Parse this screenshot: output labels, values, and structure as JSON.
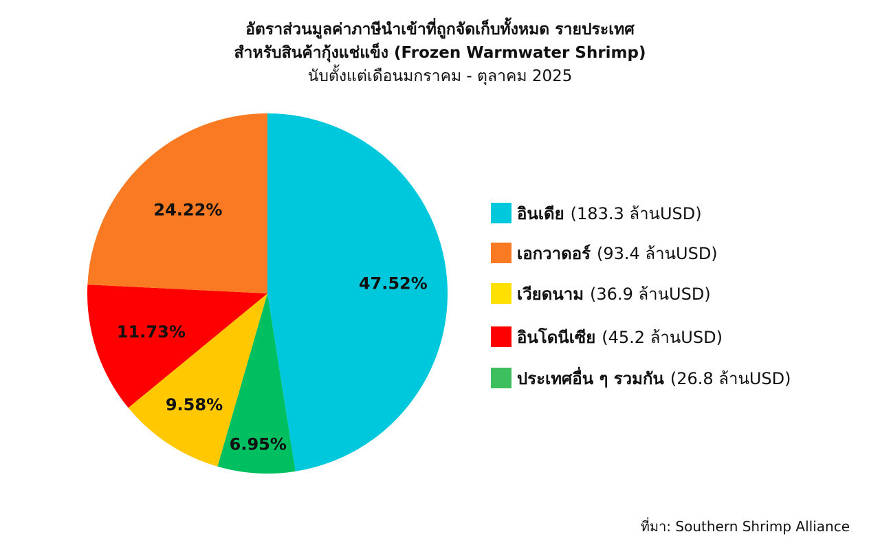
{
  "chart": {
    "title_line1": "อัตราส่วนมูลค่าภาษีนำเข้าที่ถูกจัดเก็บทั้งหมด รายประเทศ",
    "title_line2": "สำหรับสินค้ากุ้งแช่แข็ง (Frozen Warmwater Shrimp)",
    "subtitle": "นับตั้งแต่เดือนมกราคม - ตุลาคม 2025",
    "source": "ที่มา: Southern Shrimp Alliance"
  },
  "chart_data": {
    "type": "pie",
    "slices": [
      {
        "name": "อินเดีย",
        "value": 183.3,
        "value_label": "(183.3 ล้านUSD)",
        "percent": 47.52,
        "percent_label": "47.52%",
        "color": "#00C8DC"
      },
      {
        "name": "ประเทศอื่น ๆ รวมกัน",
        "value": 26.8,
        "value_label": "(26.8 ล้านUSD)",
        "percent": 6.95,
        "percent_label": "6.95%",
        "color": "#00BF60"
      },
      {
        "name": "เวียดนาม",
        "value": 36.9,
        "value_label": "(36.9 ล้านUSD)",
        "percent": 9.58,
        "percent_label": "9.58%",
        "color": "#FFC800"
      },
      {
        "name": "อินโดนีเซีย",
        "value": 45.2,
        "value_label": "(45.2 ล้านUSD)",
        "percent": 11.73,
        "percent_label": "11.73%",
        "color": "#FF0000"
      },
      {
        "name": "เอกวาดอร์",
        "value": 93.4,
        "value_label": "(93.4 ล้านUSD)",
        "percent": 24.22,
        "percent_label": "24.22%",
        "color": "#F97A22"
      }
    ],
    "legend": [
      {
        "name": "อินเดีย",
        "value_label": "(183.3 ล้านUSD)",
        "color": "#00C8DC"
      },
      {
        "name": "เอกวาดอร์",
        "value_label": "(93.4 ล้านUSD)",
        "color": "#F97A22"
      },
      {
        "name": "เวียดนาม",
        "value_label": "(36.9 ล้านUSD)",
        "color": "#FFE000"
      },
      {
        "name": "อินโดนีเซีย",
        "value_label": "(45.2 ล้านUSD)",
        "color": "#FF0000"
      },
      {
        "name": "ประเทศอื่น ๆ รวมกัน",
        "value_label": "(26.8 ล้านUSD)",
        "color": "#3DBE5F"
      }
    ],
    "legend_position": "right",
    "start": "top",
    "direction": "clockwise"
  }
}
